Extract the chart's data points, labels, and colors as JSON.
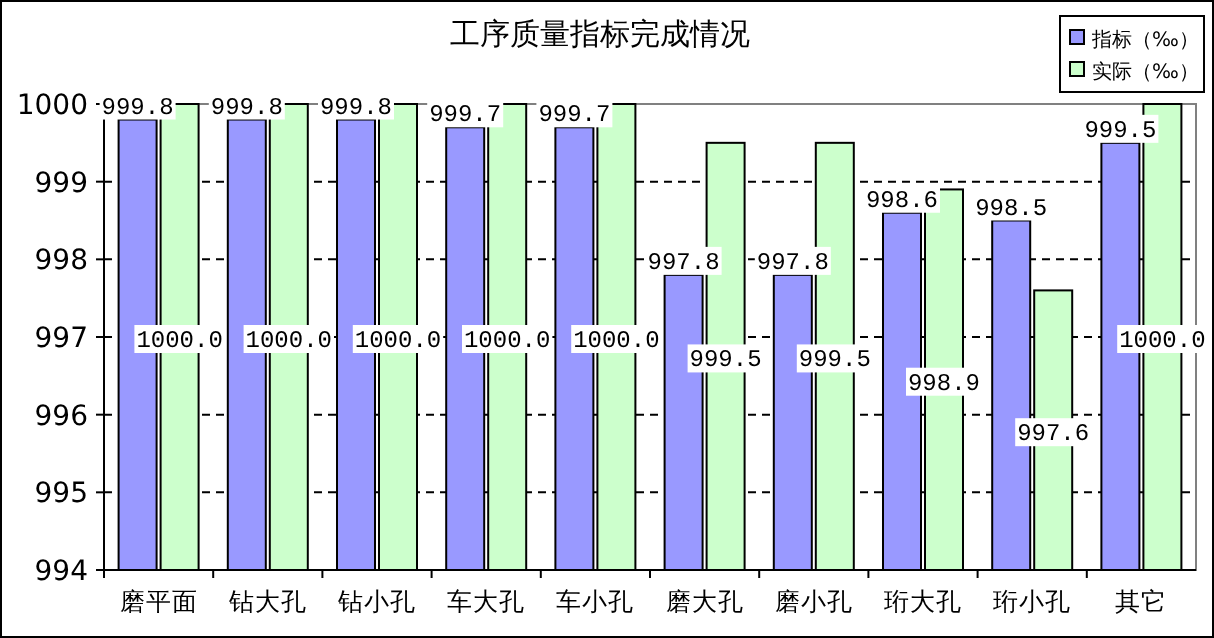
{
  "chart_data": {
    "type": "bar",
    "title": "工序质量指标完成情况",
    "categories": [
      "磨平面",
      "钻大孔",
      "钻小孔",
      "车大孔",
      "车小孔",
      "磨大孔",
      "磨小孔",
      "珩大孔",
      "珩小孔",
      "其它"
    ],
    "series": [
      {
        "name": "指标（‰）",
        "color": "#9999ff",
        "values": [
          999.8,
          999.8,
          999.8,
          999.7,
          999.7,
          997.8,
          997.8,
          998.6,
          998.5,
          999.5
        ],
        "value_labels": [
          "999.8",
          "999.8",
          "999.8",
          "999.7",
          "999.7",
          "997.8",
          "997.8",
          "998.6",
          "998.5",
          "999.5"
        ]
      },
      {
        "name": "实际（‰）",
        "color": "#ccffcc",
        "values": [
          1000.0,
          1000.0,
          1000.0,
          1000.0,
          1000.0,
          999.5,
          999.5,
          998.9,
          997.6,
          1000.0
        ],
        "value_labels": [
          "1000.0",
          "1000.0",
          "1000.0",
          "1000.0",
          "1000.0",
          "999.5",
          "999.5",
          "998.9",
          "997.6",
          "1000.0"
        ]
      }
    ],
    "ylim": [
      994,
      1000
    ],
    "yticks": [
      994,
      995,
      996,
      997,
      998,
      999,
      1000
    ],
    "grid": "y",
    "legend": "top right"
  }
}
